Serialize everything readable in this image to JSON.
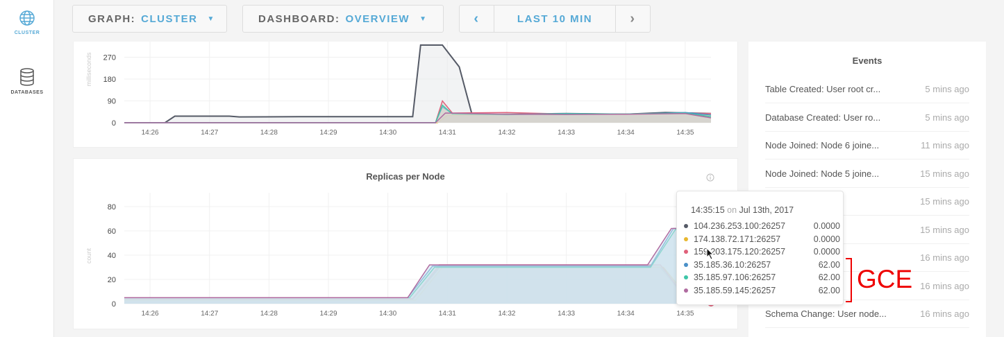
{
  "sidebar": {
    "items": [
      {
        "label": "CLUSTER",
        "icon": "globe-icon",
        "active": true
      },
      {
        "label": "DATABASES",
        "icon": "database-icon",
        "active": false
      }
    ]
  },
  "toolbar": {
    "graph_label": "GRAPH:",
    "graph_value": "CLUSTER",
    "dashboard_label": "DASHBOARD:",
    "dashboard_value": "OVERVIEW",
    "prev": "‹",
    "time_range": "LAST 10 MIN",
    "next": "›"
  },
  "colors": {
    "accent": "#55a9d6",
    "series": [
      "#555a66",
      "#e8b730",
      "#e0607a",
      "#4a90c8",
      "#3ec6a8",
      "#b06ba0"
    ]
  },
  "chart_data": [
    {
      "type": "line",
      "title": "",
      "ylabel": "milliseconds",
      "yticks": [
        0,
        90,
        180,
        270
      ],
      "ylim": [
        0,
        300
      ],
      "xticks": [
        "14:26",
        "14:27",
        "14:28",
        "14:29",
        "14:30",
        "14:31",
        "14:32",
        "14:33",
        "14:34",
        "14:35"
      ],
      "xlim": [
        "14:25:34",
        "14:35:26"
      ],
      "series": [
        {
          "points": [
            [
              "14:25:34",
              0
            ],
            [
              "14:26:15",
              0
            ],
            [
              "14:26:25",
              27
            ],
            [
              "14:27:20",
              27
            ],
            [
              "14:27:30",
              24
            ],
            [
              "14:28:30",
              25
            ],
            [
              "14:30:20",
              25
            ],
            [
              "14:30:25",
              25
            ],
            [
              "14:30:33",
              320
            ],
            [
              "14:30:55",
              320
            ],
            [
              "14:31:12",
              230
            ],
            [
              "14:31:25",
              32
            ],
            [
              "14:32:00",
              35
            ],
            [
              "14:33:00",
              38
            ],
            [
              "14:34:00",
              35
            ],
            [
              "14:34:40",
              42
            ],
            [
              "14:35:26",
              38
            ]
          ]
        },
        {
          "points": [
            [
              "14:25:34",
              0
            ],
            [
              "14:30:50",
              0
            ],
            [
              "14:31:00",
              30
            ],
            [
              "14:32:00",
              34
            ],
            [
              "14:33:00",
              36
            ],
            [
              "14:34:00",
              35
            ],
            [
              "14:35:10",
              38
            ],
            [
              "14:35:26",
              30
            ]
          ]
        },
        {
          "points": [
            [
              "14:25:34",
              0
            ],
            [
              "14:30:48",
              0
            ],
            [
              "14:30:55",
              90
            ],
            [
              "14:31:05",
              40
            ],
            [
              "14:32:00",
              42
            ],
            [
              "14:33:00",
              36
            ],
            [
              "14:34:00",
              36
            ],
            [
              "14:35:00",
              40
            ],
            [
              "14:35:26",
              38
            ]
          ]
        },
        {
          "points": [
            [
              "14:25:34",
              0
            ],
            [
              "14:30:48",
              0
            ],
            [
              "14:30:55",
              65
            ],
            [
              "14:31:05",
              38
            ],
            [
              "14:32:00",
              34
            ],
            [
              "14:33:00",
              38
            ],
            [
              "14:34:00",
              35
            ],
            [
              "14:35:00",
              42
            ],
            [
              "14:35:26",
              32
            ]
          ]
        },
        {
          "points": [
            [
              "14:25:34",
              0
            ],
            [
              "14:30:48",
              0
            ],
            [
              "14:30:55",
              72
            ],
            [
              "14:31:05",
              36
            ],
            [
              "14:32:00",
              33
            ],
            [
              "14:33:00",
              37
            ],
            [
              "14:34:00",
              36
            ],
            [
              "14:35:00",
              40
            ],
            [
              "14:35:26",
              25
            ]
          ]
        },
        {
          "points": [
            [
              "14:25:34",
              0
            ],
            [
              "14:30:48",
              0
            ],
            [
              "14:30:58",
              40
            ],
            [
              "14:32:00",
              35
            ],
            [
              "14:33:00",
              34
            ],
            [
              "14:34:00",
              35
            ],
            [
              "14:35:00",
              38
            ],
            [
              "14:35:26",
              20
            ]
          ]
        }
      ]
    },
    {
      "type": "area",
      "title": "Replicas per Node",
      "ylabel": "count",
      "yticks": [
        0,
        20,
        40,
        60,
        80
      ],
      "ylim": [
        0,
        80
      ],
      "xticks": [
        "14:26",
        "14:27",
        "14:28",
        "14:29",
        "14:30",
        "14:31",
        "14:32",
        "14:33",
        "14:34",
        "14:35"
      ],
      "xlim": [
        "14:25:34",
        "14:35:26"
      ],
      "series": [
        {
          "name": "104.236.253.100:26257",
          "points": [
            [
              "14:25:34",
              4
            ],
            [
              "14:30:25",
              4
            ],
            [
              "14:30:52",
              30
            ],
            [
              "14:34:35",
              30
            ],
            [
              "14:35:05",
              0
            ],
            [
              "14:35:26",
              0
            ]
          ]
        },
        {
          "name": "174.138.72.171:26257",
          "points": [
            [
              "14:25:34",
              3
            ],
            [
              "14:30:28",
              3
            ],
            [
              "14:30:55",
              30
            ],
            [
              "14:34:38",
              30
            ],
            [
              "14:35:08",
              0
            ],
            [
              "14:35:26",
              0
            ]
          ]
        },
        {
          "name": "159.203.175.120:26257",
          "points": [
            [
              "14:25:34",
              4
            ],
            [
              "14:30:25",
              4
            ],
            [
              "14:30:52",
              32
            ],
            [
              "14:34:35",
              32
            ],
            [
              "14:35:05",
              0
            ],
            [
              "14:35:26",
              0
            ]
          ]
        },
        {
          "name": "35.185.36.10:26257",
          "points": [
            [
              "14:25:34",
              5
            ],
            [
              "14:30:20",
              5
            ],
            [
              "14:30:45",
              31
            ],
            [
              "14:34:25",
              31
            ],
            [
              "14:34:48",
              62
            ],
            [
              "14:35:26",
              62
            ]
          ]
        },
        {
          "name": "35.185.97.106:26257",
          "points": [
            [
              "14:25:34",
              5
            ],
            [
              "14:30:22",
              5
            ],
            [
              "14:30:47",
              30
            ],
            [
              "14:34:25",
              30
            ],
            [
              "14:34:50",
              61
            ],
            [
              "14:35:26",
              62
            ]
          ]
        },
        {
          "name": "35.185.59.145:26257",
          "points": [
            [
              "14:25:34",
              5
            ],
            [
              "14:30:20",
              5
            ],
            [
              "14:30:42",
              32
            ],
            [
              "14:34:22",
              32
            ],
            [
              "14:34:46",
              62
            ],
            [
              "14:35:26",
              62
            ]
          ]
        }
      ]
    }
  ],
  "tooltip": {
    "time": "14:35:15",
    "on": "on",
    "date": "Jul 13th, 2017",
    "rows": [
      {
        "name": "104.236.253.100:26257",
        "value": "0.0000"
      },
      {
        "name": "174.138.72.171:26257",
        "value": "0.0000"
      },
      {
        "name": "159.203.175.120:26257",
        "value": "0.0000"
      },
      {
        "name": "35.185.36.10:26257",
        "value": "62.00"
      },
      {
        "name": "35.185.97.106:26257",
        "value": "62.00"
      },
      {
        "name": "35.185.59.145:26257",
        "value": "62.00"
      }
    ]
  },
  "annotation": {
    "label": "GCE"
  },
  "events": {
    "title": "Events",
    "items": [
      {
        "text": "Table Created: User root cr...",
        "ago": "5 mins ago"
      },
      {
        "text": "Database Created: User ro...",
        "ago": "5 mins ago"
      },
      {
        "text": "Node Joined: Node 6 joine...",
        "ago": "11 mins ago"
      },
      {
        "text": "Node Joined: Node 5 joine...",
        "ago": "15 mins ago"
      },
      {
        "text": "",
        "ago": "15 mins ago"
      },
      {
        "text": "",
        "ago": "15 mins ago"
      },
      {
        "text": "",
        "ago": "16 mins ago"
      },
      {
        "text": "",
        "ago": "16 mins ago"
      },
      {
        "text": "Schema Change: User node...",
        "ago": "16 mins ago"
      }
    ]
  }
}
